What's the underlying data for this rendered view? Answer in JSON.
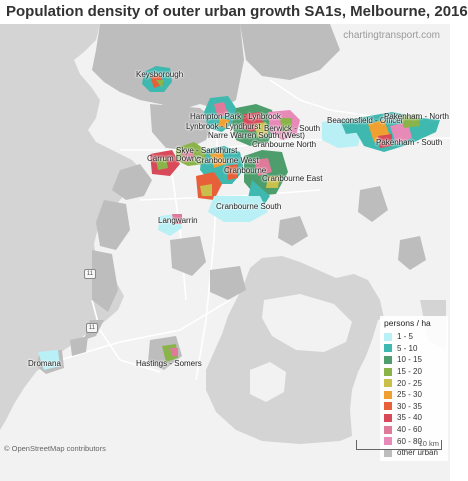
{
  "title": "Population density of outer urban growth SA1s, Melbourne, 2016",
  "credit": "chartingtransport.com",
  "attribution": "© OpenStreetMap contributors",
  "scale_label": "10 km",
  "highway_markers": [
    "11",
    "11"
  ],
  "regions": [
    "Keysborough",
    "Hampton Park - Lynbrook",
    "Lynbrook - Lyndhurst",
    "Narre Warren South (West)",
    "Berwick - South",
    "Beaconsfield - Officer",
    "Pakenham - North",
    "Pakenham - South",
    "Cranbourne North",
    "Skye - Sandhurst",
    "Carrum Downs",
    "Cranbourne West",
    "Cranbourne",
    "Cranbourne East",
    "Cranbourne South",
    "Langwarrin",
    "Dromana",
    "Hastings - Somers"
  ],
  "legend": {
    "title": "persons / ha",
    "items": [
      {
        "label": "1 - 5",
        "color": "#b8f0f6"
      },
      {
        "label": "5 - 10",
        "color": "#3fb8b0"
      },
      {
        "label": "10 - 15",
        "color": "#4d9e6c"
      },
      {
        "label": "15 - 20",
        "color": "#8ab44a"
      },
      {
        "label": "20 - 25",
        "color": "#c8c04a"
      },
      {
        "label": "25 - 30",
        "color": "#f0a030"
      },
      {
        "label": "30 - 35",
        "color": "#e8603a"
      },
      {
        "label": "35 - 40",
        "color": "#d84a5a"
      },
      {
        "label": "40 - 60",
        "color": "#e07a9a"
      },
      {
        "label": "60 - 80",
        "color": "#e88ab8"
      },
      {
        "label": "other urban",
        "color": "#bdbdbd"
      }
    ]
  },
  "map_colors": {
    "land": "#f2f2f2",
    "water": "#d4d4d4",
    "urban": "#bdbdbd",
    "road": "#ffffff"
  }
}
